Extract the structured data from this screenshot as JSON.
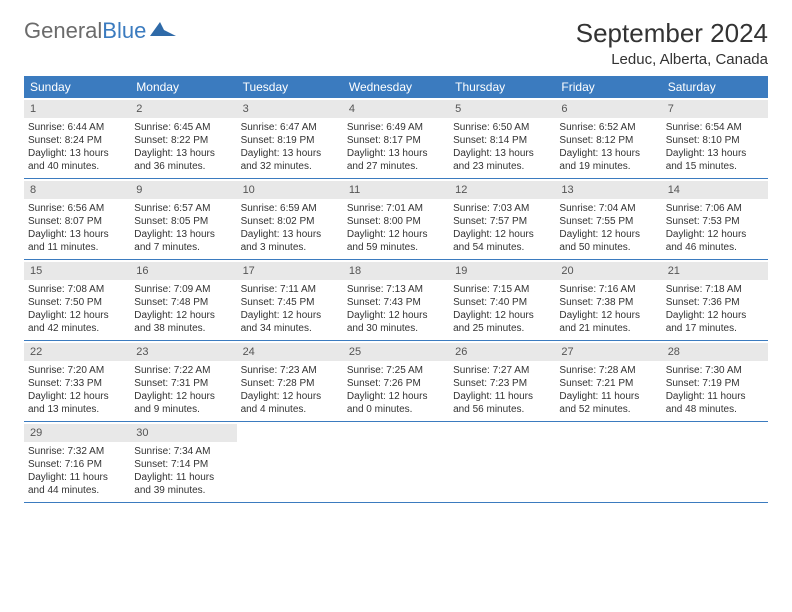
{
  "logo": {
    "text1": "General",
    "text2": "Blue"
  },
  "title": "September 2024",
  "location": "Leduc, Alberta, Canada",
  "colors": {
    "header_bg": "#3b7bbf",
    "header_text": "#ffffff",
    "daynum_bg": "#e8e8e8",
    "border": "#3b7bbf",
    "body_text": "#333333",
    "logo_gray": "#6b6b6b",
    "logo_blue": "#3b7bbf"
  },
  "day_names": [
    "Sunday",
    "Monday",
    "Tuesday",
    "Wednesday",
    "Thursday",
    "Friday",
    "Saturday"
  ],
  "days": [
    {
      "n": 1,
      "sr": "6:44 AM",
      "ss": "8:24 PM",
      "dl": "13 hours and 40 minutes."
    },
    {
      "n": 2,
      "sr": "6:45 AM",
      "ss": "8:22 PM",
      "dl": "13 hours and 36 minutes."
    },
    {
      "n": 3,
      "sr": "6:47 AM",
      "ss": "8:19 PM",
      "dl": "13 hours and 32 minutes."
    },
    {
      "n": 4,
      "sr": "6:49 AM",
      "ss": "8:17 PM",
      "dl": "13 hours and 27 minutes."
    },
    {
      "n": 5,
      "sr": "6:50 AM",
      "ss": "8:14 PM",
      "dl": "13 hours and 23 minutes."
    },
    {
      "n": 6,
      "sr": "6:52 AM",
      "ss": "8:12 PM",
      "dl": "13 hours and 19 minutes."
    },
    {
      "n": 7,
      "sr": "6:54 AM",
      "ss": "8:10 PM",
      "dl": "13 hours and 15 minutes."
    },
    {
      "n": 8,
      "sr": "6:56 AM",
      "ss": "8:07 PM",
      "dl": "13 hours and 11 minutes."
    },
    {
      "n": 9,
      "sr": "6:57 AM",
      "ss": "8:05 PM",
      "dl": "13 hours and 7 minutes."
    },
    {
      "n": 10,
      "sr": "6:59 AM",
      "ss": "8:02 PM",
      "dl": "13 hours and 3 minutes."
    },
    {
      "n": 11,
      "sr": "7:01 AM",
      "ss": "8:00 PM",
      "dl": "12 hours and 59 minutes."
    },
    {
      "n": 12,
      "sr": "7:03 AM",
      "ss": "7:57 PM",
      "dl": "12 hours and 54 minutes."
    },
    {
      "n": 13,
      "sr": "7:04 AM",
      "ss": "7:55 PM",
      "dl": "12 hours and 50 minutes."
    },
    {
      "n": 14,
      "sr": "7:06 AM",
      "ss": "7:53 PM",
      "dl": "12 hours and 46 minutes."
    },
    {
      "n": 15,
      "sr": "7:08 AM",
      "ss": "7:50 PM",
      "dl": "12 hours and 42 minutes."
    },
    {
      "n": 16,
      "sr": "7:09 AM",
      "ss": "7:48 PM",
      "dl": "12 hours and 38 minutes."
    },
    {
      "n": 17,
      "sr": "7:11 AM",
      "ss": "7:45 PM",
      "dl": "12 hours and 34 minutes."
    },
    {
      "n": 18,
      "sr": "7:13 AM",
      "ss": "7:43 PM",
      "dl": "12 hours and 30 minutes."
    },
    {
      "n": 19,
      "sr": "7:15 AM",
      "ss": "7:40 PM",
      "dl": "12 hours and 25 minutes."
    },
    {
      "n": 20,
      "sr": "7:16 AM",
      "ss": "7:38 PM",
      "dl": "12 hours and 21 minutes."
    },
    {
      "n": 21,
      "sr": "7:18 AM",
      "ss": "7:36 PM",
      "dl": "12 hours and 17 minutes."
    },
    {
      "n": 22,
      "sr": "7:20 AM",
      "ss": "7:33 PM",
      "dl": "12 hours and 13 minutes."
    },
    {
      "n": 23,
      "sr": "7:22 AM",
      "ss": "7:31 PM",
      "dl": "12 hours and 9 minutes."
    },
    {
      "n": 24,
      "sr": "7:23 AM",
      "ss": "7:28 PM",
      "dl": "12 hours and 4 minutes."
    },
    {
      "n": 25,
      "sr": "7:25 AM",
      "ss": "7:26 PM",
      "dl": "12 hours and 0 minutes."
    },
    {
      "n": 26,
      "sr": "7:27 AM",
      "ss": "7:23 PM",
      "dl": "11 hours and 56 minutes."
    },
    {
      "n": 27,
      "sr": "7:28 AM",
      "ss": "7:21 PM",
      "dl": "11 hours and 52 minutes."
    },
    {
      "n": 28,
      "sr": "7:30 AM",
      "ss": "7:19 PM",
      "dl": "11 hours and 48 minutes."
    },
    {
      "n": 29,
      "sr": "7:32 AM",
      "ss": "7:16 PM",
      "dl": "11 hours and 44 minutes."
    },
    {
      "n": 30,
      "sr": "7:34 AM",
      "ss": "7:14 PM",
      "dl": "11 hours and 39 minutes."
    }
  ],
  "labels": {
    "sunrise": "Sunrise:",
    "sunset": "Sunset:",
    "daylight": "Daylight:"
  },
  "layout": {
    "cols": 7,
    "first_weekday_index": 0,
    "trailing_empty": 5
  }
}
